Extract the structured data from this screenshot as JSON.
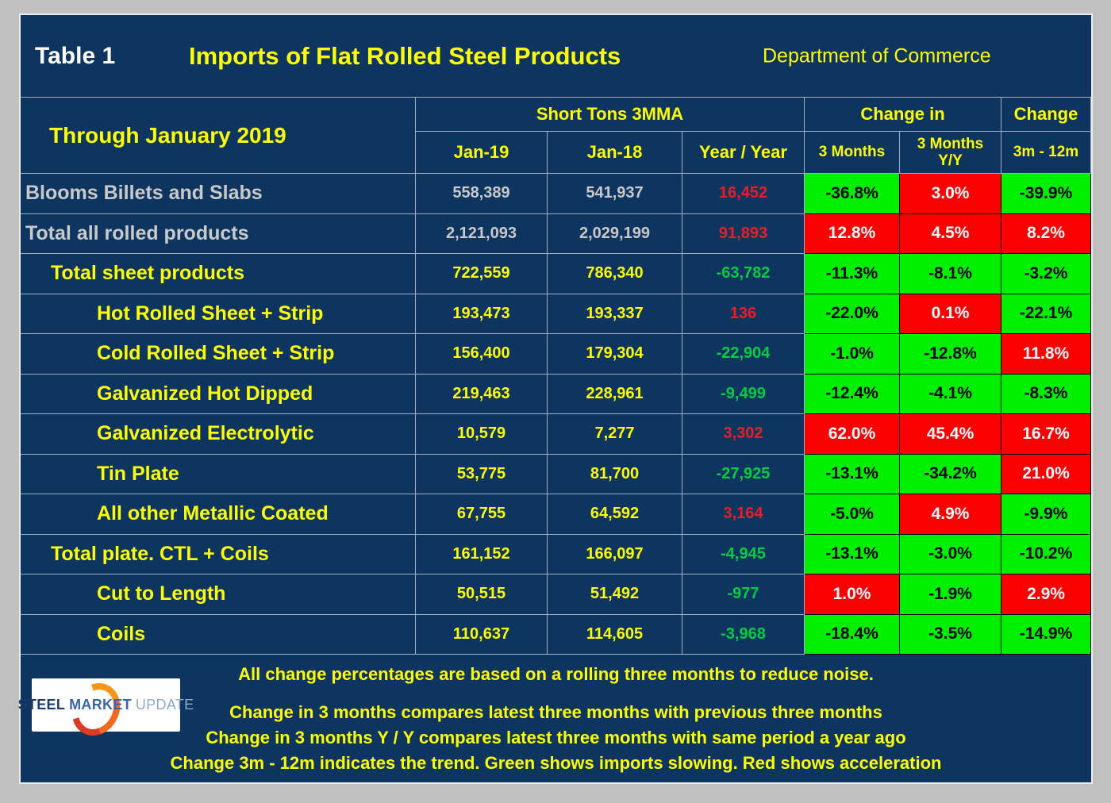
{
  "title": {
    "table_label": "Table 1",
    "main": "Imports of Flat Rolled Steel Products",
    "source": "Department of Commerce"
  },
  "header": {
    "row_label": "Through January 2019",
    "group_tons": "Short Tons 3MMA",
    "group_change_in": "Change in",
    "group_change": "Change",
    "col_jan19": "Jan-19",
    "col_jan18": "Jan-18",
    "col_year_year": "Year / Year",
    "col_3_months": "3 Months",
    "col_3_months_yy_line1": "3 Months",
    "col_3_months_yy_line2": "Y/Y",
    "col_3m_12m": "3m - 12m"
  },
  "rows": [
    {
      "label": "Blooms Billets and Slabs",
      "indent": 0,
      "label_color": "gray",
      "jan19": "558,389",
      "jan18": "541,937",
      "yoy": "16,452",
      "yoy_color": "red",
      "pcts": [
        {
          "value": "-36.8%",
          "bg": "green"
        },
        {
          "value": "3.0%",
          "bg": "red"
        },
        {
          "value": "-39.9%",
          "bg": "green"
        }
      ]
    },
    {
      "label": "Total all rolled products",
      "indent": 0,
      "label_color": "gray",
      "jan19": "2,121,093",
      "jan18": "2,029,199",
      "yoy": "91,893",
      "yoy_color": "red",
      "pcts": [
        {
          "value": "12.8%",
          "bg": "red"
        },
        {
          "value": "4.5%",
          "bg": "red"
        },
        {
          "value": "8.2%",
          "bg": "red"
        }
      ]
    },
    {
      "label": "Total sheet products",
      "indent": 1,
      "label_color": "yellow",
      "jan19": "722,559",
      "jan18": "786,340",
      "yoy": "-63,782",
      "yoy_color": "green",
      "pcts": [
        {
          "value": "-11.3%",
          "bg": "green"
        },
        {
          "value": "-8.1%",
          "bg": "green"
        },
        {
          "value": "-3.2%",
          "bg": "green"
        }
      ]
    },
    {
      "label": "Hot Rolled Sheet + Strip",
      "indent": 2,
      "label_color": "yellow",
      "jan19": "193,473",
      "jan18": "193,337",
      "yoy": "136",
      "yoy_color": "red",
      "pcts": [
        {
          "value": "-22.0%",
          "bg": "green"
        },
        {
          "value": "0.1%",
          "bg": "red"
        },
        {
          "value": "-22.1%",
          "bg": "green"
        }
      ]
    },
    {
      "label": "Cold Rolled Sheet + Strip",
      "indent": 2,
      "label_color": "yellow",
      "jan19": "156,400",
      "jan18": "179,304",
      "yoy": "-22,904",
      "yoy_color": "green",
      "pcts": [
        {
          "value": "-1.0%",
          "bg": "green"
        },
        {
          "value": "-12.8%",
          "bg": "green"
        },
        {
          "value": "11.8%",
          "bg": "red"
        }
      ]
    },
    {
      "label": "Galvanized Hot Dipped",
      "indent": 2,
      "label_color": "yellow",
      "jan19": "219,463",
      "jan18": "228,961",
      "yoy": "-9,499",
      "yoy_color": "green",
      "pcts": [
        {
          "value": "-12.4%",
          "bg": "green"
        },
        {
          "value": "-4.1%",
          "bg": "green"
        },
        {
          "value": "-8.3%",
          "bg": "green"
        }
      ]
    },
    {
      "label": "Galvanized Electrolytic",
      "indent": 2,
      "label_color": "yellow",
      "jan19": "10,579",
      "jan18": "7,277",
      "yoy": "3,302",
      "yoy_color": "red",
      "pcts": [
        {
          "value": "62.0%",
          "bg": "red"
        },
        {
          "value": "45.4%",
          "bg": "red"
        },
        {
          "value": "16.7%",
          "bg": "red"
        }
      ]
    },
    {
      "label": "Tin Plate",
      "indent": 2,
      "label_color": "yellow",
      "jan19": "53,775",
      "jan18": "81,700",
      "yoy": "-27,925",
      "yoy_color": "green",
      "pcts": [
        {
          "value": "-13.1%",
          "bg": "green"
        },
        {
          "value": "-34.2%",
          "bg": "green"
        },
        {
          "value": "21.0%",
          "bg": "red"
        }
      ]
    },
    {
      "label": "All other Metallic Coated",
      "indent": 2,
      "label_color": "yellow",
      "jan19": "67,755",
      "jan18": "64,592",
      "yoy": "3,164",
      "yoy_color": "red",
      "pcts": [
        {
          "value": "-5.0%",
          "bg": "green"
        },
        {
          "value": "4.9%",
          "bg": "red"
        },
        {
          "value": "-9.9%",
          "bg": "green"
        }
      ]
    },
    {
      "label": "Total plate. CTL + Coils",
      "indent": 1,
      "label_color": "yellow",
      "jan19": "161,152",
      "jan18": "166,097",
      "yoy": "-4,945",
      "yoy_color": "green",
      "pcts": [
        {
          "value": "-13.1%",
          "bg": "green"
        },
        {
          "value": "-3.0%",
          "bg": "green"
        },
        {
          "value": "-10.2%",
          "bg": "green"
        }
      ]
    },
    {
      "label": "Cut to Length",
      "indent": 2,
      "label_color": "yellow",
      "jan19": "50,515",
      "jan18": "51,492",
      "yoy": "-977",
      "yoy_color": "green",
      "pcts": [
        {
          "value": "1.0%",
          "bg": "red"
        },
        {
          "value": "-1.9%",
          "bg": "green"
        },
        {
          "value": "2.9%",
          "bg": "red"
        }
      ]
    },
    {
      "label": "Coils",
      "indent": 2,
      "label_color": "yellow",
      "jan19": "110,637",
      "jan18": "114,605",
      "yoy": "-3,968",
      "yoy_color": "green",
      "pcts": [
        {
          "value": "-18.4%",
          "bg": "green"
        },
        {
          "value": "-3.5%",
          "bg": "green"
        },
        {
          "value": "-14.9%",
          "bg": "green"
        }
      ]
    }
  ],
  "footer": {
    "note1": "All change percentages are based on a rolling three months to reduce noise.",
    "note2": "Change in 3 months compares latest three months with previous three months",
    "note3": "Change in 3 months  Y / Y compares latest three months with same period a year ago",
    "note4": "Change 3m - 12m indicates the trend. Green shows imports slowing. Red shows acceleration",
    "logo": {
      "word1": "STEEL",
      "word2": "MARKET",
      "word3": "UPDATE"
    }
  },
  "colors": {
    "panel_navy": "#0E355F",
    "frame_gray": "#C0C0C0",
    "accent_yellow": "#FFFF00",
    "label_gray": "#C9C9C9",
    "increase_text_red": "#EE1C25",
    "decrease_text_green": "#00CC44",
    "cell_green": "#00EE00",
    "cell_red": "#FA0000",
    "logo_orange": "#F26822"
  }
}
